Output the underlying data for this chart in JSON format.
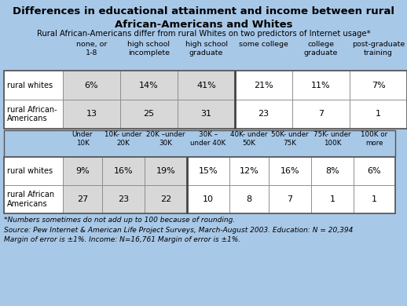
{
  "title": "Differences in educational attainment and income between rural\nAfrican-Americans and Whites",
  "subtitle": "Rural African-Americans differ from rural Whites on two predictors of Internet usage*",
  "bg_color": "#a8c8e8",
  "cell_gray": "#d8d8d8",
  "cell_white": "#ffffff",
  "edu_col_headers": [
    "none, or\n1-8",
    "high school\nincomplete",
    "high school\ngraduate",
    "some college",
    "college\ngraduate",
    "post-graduate\ntraining"
  ],
  "edu_row_labels": [
    "rural whites",
    "rural African-\nAmericans"
  ],
  "edu_whites": [
    "6%",
    "14%",
    "41%",
    "21%",
    "11%",
    "7%"
  ],
  "edu_african": [
    "13",
    "25",
    "31",
    "23",
    "7",
    "1"
  ],
  "inc_col_headers": [
    "Under\n10K",
    "10K- under\n20K",
    "20K –under\n30K",
    "30K –\nunder 40K",
    "40K- under\n50K",
    "50K- under\n75K",
    "75K- under\n100K",
    "100K or\nmore"
  ],
  "inc_row_labels": [
    "rural whites",
    "rural African\nAmericans"
  ],
  "inc_whites": [
    "9%",
    "16%",
    "19%",
    "15%",
    "12%",
    "16%",
    "8%",
    "6%"
  ],
  "inc_african": [
    "27",
    "23",
    "22",
    "10",
    "8",
    "7",
    "1",
    "1"
  ],
  "footnote1": "*Numbers sometimes do not add up to 100 because of rounding.",
  "footnote2": "Source: Pew Internet & American Life Project Surveys, March-August 2003. Education: N = 20,394\nMargin of error is ±1%. Income: N=16,761 Margin of error is ±1%.",
  "edu_gray_cols": [
    0,
    1,
    2
  ],
  "inc_gray_cols": [
    0,
    1,
    2
  ],
  "title_fontsize": 9.5,
  "subtitle_fontsize": 7.2,
  "header_fontsize": 6.8,
  "cell_fontsize": 8.0,
  "label_fontsize": 7.0,
  "footnote_fontsize": 6.5
}
